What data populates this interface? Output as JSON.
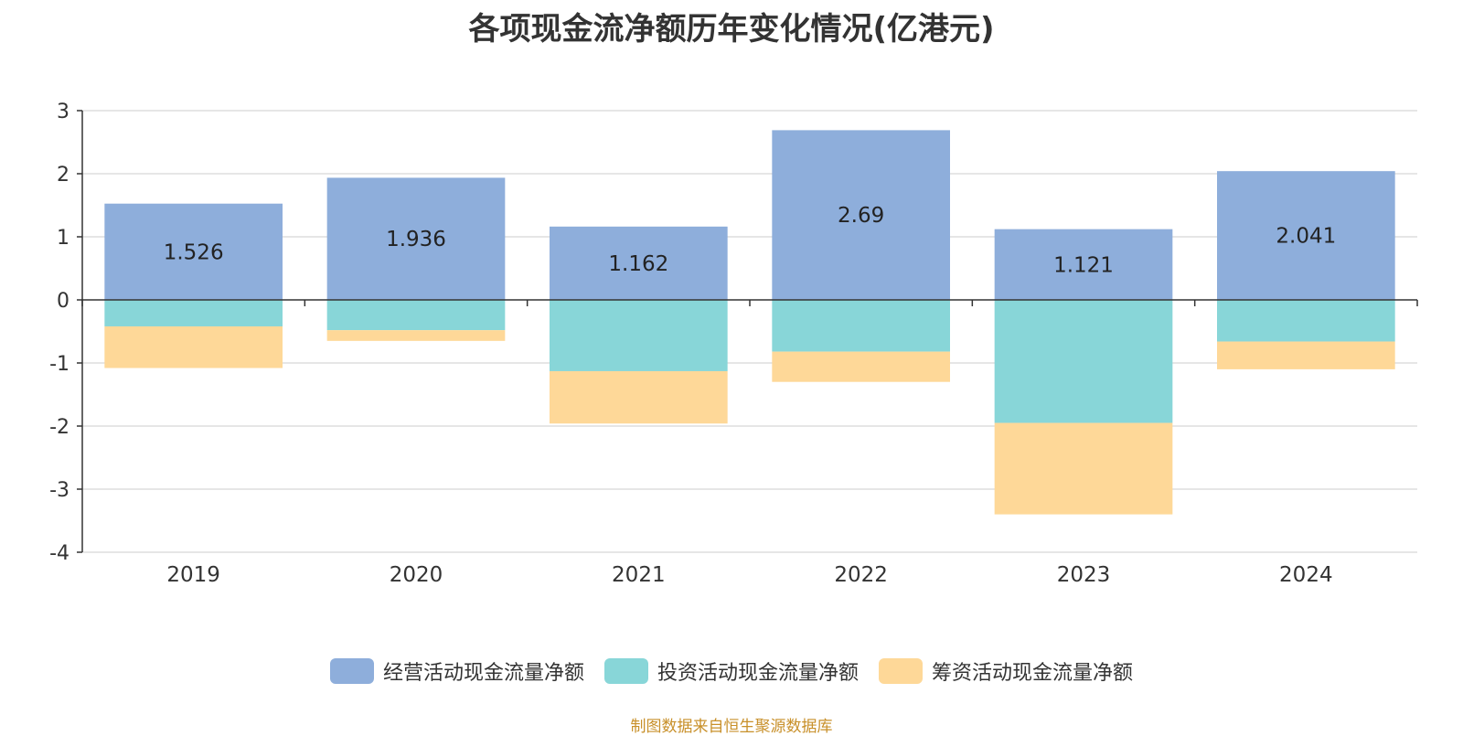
{
  "title": "各项现金流净额历年变化情况(亿港元)",
  "source": "制图数据来自恒生聚源数据库",
  "chart_data": {
    "type": "bar",
    "stacked": true,
    "categories": [
      "2019",
      "2020",
      "2021",
      "2022",
      "2023",
      "2024"
    ],
    "ylim": [
      -4,
      3
    ],
    "yticks": [
      "3",
      "2",
      "1",
      "0",
      "-1",
      "-2",
      "-3",
      "-4"
    ],
    "grid": true,
    "legend_position": "bottom",
    "series": [
      {
        "name": "经营活动现金流量净额",
        "color": "#8eaedb",
        "values": [
          1.526,
          1.936,
          1.162,
          2.69,
          1.121,
          2.041
        ],
        "labels": [
          "1.526",
          "1.936",
          "1.162",
          "2.69",
          "1.121",
          "2.041"
        ]
      },
      {
        "name": "投资活动现金流量净额",
        "color": "#88d6d8",
        "values": [
          -0.42,
          -0.48,
          -1.13,
          -0.82,
          -1.95,
          -0.66
        ]
      },
      {
        "name": "筹资活动现金流量净额",
        "color": "#fed898",
        "values": [
          -0.66,
          -0.17,
          -0.83,
          -0.48,
          -1.45,
          -0.44
        ]
      }
    ]
  }
}
